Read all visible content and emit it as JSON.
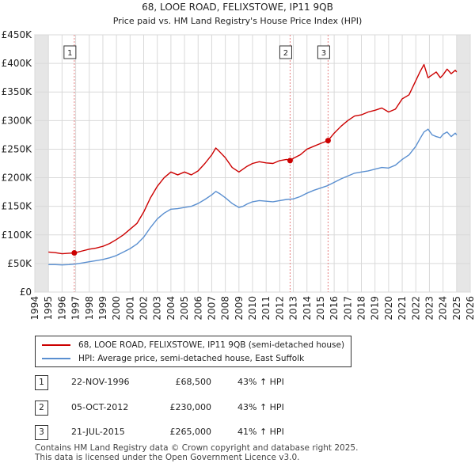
{
  "chart_data": {
    "type": "line",
    "title": "68, LOOE ROAD, FELIXSTOWE, IP11 9QB",
    "subtitle": "Price paid vs. HM Land Registry's House Price Index (HPI)",
    "xlim": [
      1994,
      2026
    ],
    "ylim": [
      0,
      450000
    ],
    "x_ticks": [
      "1994",
      "1995",
      "1996",
      "1997",
      "1998",
      "1999",
      "2000",
      "2001",
      "2002",
      "2003",
      "2004",
      "2005",
      "2006",
      "2007",
      "2008",
      "2009",
      "2010",
      "2011",
      "2012",
      "2013",
      "2014",
      "2015",
      "2016",
      "2017",
      "2018",
      "2019",
      "2020",
      "2021",
      "2022",
      "2023",
      "2024",
      "2025",
      "2026"
    ],
    "y_ticks": [
      {
        "value": 0,
        "label": "£0"
      },
      {
        "value": 50000,
        "label": "£50K"
      },
      {
        "value": 100000,
        "label": "£100K"
      },
      {
        "value": 150000,
        "label": "£150K"
      },
      {
        "value": 200000,
        "label": "£200K"
      },
      {
        "value": 250000,
        "label": "£250K"
      },
      {
        "value": 300000,
        "label": "£300K"
      },
      {
        "value": 350000,
        "label": "£350K"
      },
      {
        "value": 400000,
        "label": "£400K"
      },
      {
        "value": 450000,
        "label": "£450K"
      }
    ],
    "shaded_ranges": [
      [
        1994,
        1995.0
      ],
      [
        2025.0,
        2026
      ]
    ],
    "series": [
      {
        "name": "68, LOOE ROAD, FELIXSTOWE, IP11 9QB (semi-detached house)",
        "color": "#cc0000",
        "x": [
          1995.0,
          1995.5,
          1996.0,
          1996.5,
          1996.9,
          1997.5,
          1998.0,
          1998.5,
          1999.0,
          1999.5,
          2000.0,
          2000.5,
          2001.0,
          2001.5,
          2002.0,
          2002.5,
          2003.0,
          2003.5,
          2004.0,
          2004.5,
          2005.0,
          2005.5,
          2006.0,
          2006.5,
          2007.0,
          2007.3,
          2007.6,
          2008.0,
          2008.5,
          2009.0,
          2009.3,
          2009.6,
          2010.0,
          2010.5,
          2011.0,
          2011.5,
          2012.0,
          2012.5,
          2012.76,
          2013.0,
          2013.5,
          2014.0,
          2014.5,
          2015.0,
          2015.55,
          2016.0,
          2016.5,
          2017.0,
          2017.5,
          2018.0,
          2018.5,
          2019.0,
          2019.5,
          2020.0,
          2020.5,
          2021.0,
          2021.5,
          2022.0,
          2022.3,
          2022.6,
          2022.9,
          2023.2,
          2023.5,
          2023.8,
          2024.0,
          2024.3,
          2024.6,
          2024.9,
          2025.0
        ],
        "values": [
          70000,
          69000,
          67000,
          68000,
          68500,
          72000,
          75000,
          77000,
          80000,
          85000,
          92000,
          100000,
          110000,
          120000,
          140000,
          165000,
          185000,
          200000,
          210000,
          205000,
          210000,
          205000,
          212000,
          225000,
          240000,
          252000,
          245000,
          235000,
          218000,
          210000,
          215000,
          220000,
          225000,
          228000,
          226000,
          225000,
          230000,
          232000,
          230000,
          234000,
          240000,
          250000,
          255000,
          260000,
          265000,
          278000,
          290000,
          300000,
          308000,
          310000,
          315000,
          318000,
          322000,
          315000,
          320000,
          338000,
          345000,
          370000,
          385000,
          398000,
          375000,
          380000,
          385000,
          375000,
          380000,
          390000,
          382000,
          388000,
          385000
        ]
      },
      {
        "name": "HPI: Average price, semi-detached house, East Suffolk",
        "color": "#5a8fd0",
        "x": [
          1995.0,
          1995.5,
          1996.0,
          1996.5,
          1997.0,
          1997.5,
          1998.0,
          1998.5,
          1999.0,
          1999.5,
          2000.0,
          2000.5,
          2001.0,
          2001.5,
          2002.0,
          2002.5,
          2003.0,
          2003.5,
          2004.0,
          2004.5,
          2005.0,
          2005.5,
          2006.0,
          2006.5,
          2007.0,
          2007.3,
          2007.6,
          2008.0,
          2008.5,
          2009.0,
          2009.3,
          2009.6,
          2010.0,
          2010.5,
          2011.0,
          2011.5,
          2012.0,
          2012.5,
          2013.0,
          2013.5,
          2014.0,
          2014.5,
          2015.0,
          2015.5,
          2016.0,
          2016.5,
          2017.0,
          2017.5,
          2018.0,
          2018.5,
          2019.0,
          2019.5,
          2020.0,
          2020.5,
          2021.0,
          2021.5,
          2022.0,
          2022.3,
          2022.6,
          2022.9,
          2023.2,
          2023.5,
          2023.8,
          2024.0,
          2024.3,
          2024.6,
          2024.9,
          2025.0
        ],
        "values": [
          48000,
          48000,
          47500,
          48000,
          49000,
          51000,
          53000,
          55000,
          57000,
          60000,
          64000,
          70000,
          76000,
          84000,
          96000,
          113000,
          128000,
          138000,
          145000,
          146000,
          148000,
          150000,
          155000,
          162000,
          170000,
          176000,
          172000,
          165000,
          155000,
          148000,
          150000,
          154000,
          158000,
          160000,
          159000,
          158000,
          160000,
          162000,
          163000,
          167000,
          173000,
          178000,
          182000,
          186000,
          192000,
          198000,
          203000,
          208000,
          210000,
          212000,
          215000,
          218000,
          217000,
          222000,
          232000,
          240000,
          255000,
          268000,
          280000,
          285000,
          275000,
          272000,
          270000,
          276000,
          280000,
          272000,
          278000,
          275000
        ]
      }
    ],
    "sales": [
      {
        "label": "1",
        "x": 1996.9,
        "value": 68500
      },
      {
        "label": "2",
        "x": 2012.76,
        "value": 230000
      },
      {
        "label": "3",
        "x": 2015.55,
        "value": 265000
      }
    ]
  },
  "legend": {
    "property": "68, LOOE ROAD, FELIXSTOWE, IP11 9QB (semi-detached house)",
    "hpi": "HPI: Average price, semi-detached house, East Suffolk"
  },
  "transactions": [
    {
      "num": "1",
      "date": "22-NOV-1996",
      "price": "£68,500",
      "hpi": "43% ↑ HPI"
    },
    {
      "num": "2",
      "date": "05-OCT-2012",
      "price": "£230,000",
      "hpi": "43% ↑ HPI"
    },
    {
      "num": "3",
      "date": "21-JUL-2015",
      "price": "£265,000",
      "hpi": "41% ↑ HPI"
    }
  ],
  "footer": {
    "line1": "Contains HM Land Registry data © Crown copyright and database right 2025.",
    "line2": "This data is licensed under the Open Government Licence v3.0."
  }
}
